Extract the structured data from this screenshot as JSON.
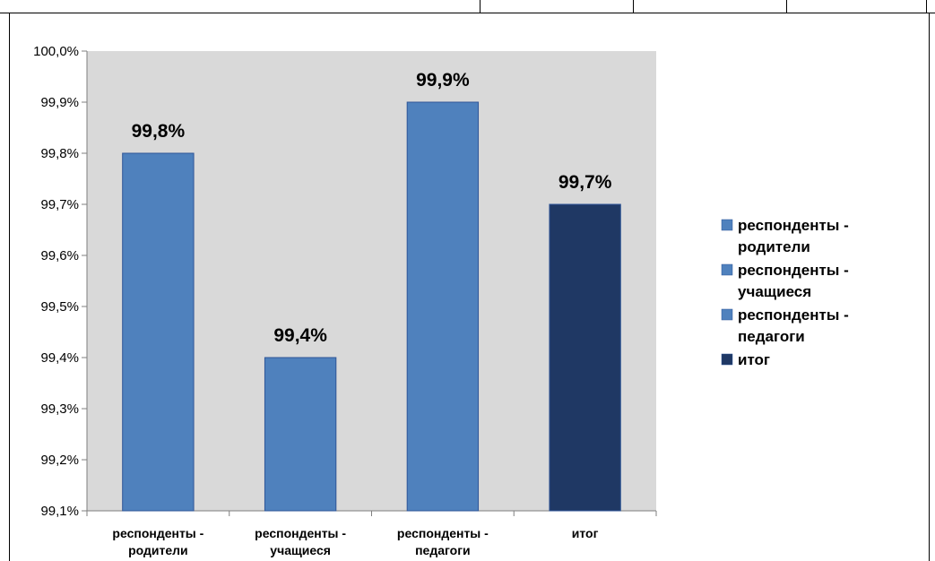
{
  "chart_data": {
    "type": "bar",
    "title": "",
    "xlabel": "",
    "ylabel": "",
    "categories": [
      [
        "респонденты -",
        "родители"
      ],
      [
        "респонденты -",
        "учащиеся"
      ],
      [
        "респонденты -",
        "педагоги"
      ],
      [
        "итог"
      ]
    ],
    "values": [
      99.8,
      99.4,
      99.9,
      99.7
    ],
    "data_labels": [
      "99,8%",
      "99,4%",
      "99,9%",
      "99,7%"
    ],
    "colors": [
      "#4f81bd",
      "#4f81bd",
      "#4f81bd",
      "#1f3864"
    ],
    "ylim": [
      99.1,
      100.0
    ],
    "yticks": [
      99.1,
      99.2,
      99.3,
      99.4,
      99.5,
      99.6,
      99.7,
      99.8,
      99.9,
      100.0
    ],
    "ytick_labels": [
      "99,1%",
      "99,2%",
      "99,3%",
      "99,4%",
      "99,5%",
      "99,6%",
      "99,7%",
      "99,8%",
      "99,9%",
      "100,0%"
    ],
    "plot_background": "#d9d9d9",
    "grid": false,
    "legend": {
      "position": "right",
      "entries": [
        {
          "lines": [
            "респонденты -",
            "родители"
          ],
          "color": "#4f81bd"
        },
        {
          "lines": [
            "респонденты -",
            "учащиеся"
          ],
          "color": "#4f81bd"
        },
        {
          "lines": [
            "респонденты -",
            "педагоги"
          ],
          "color": "#4f81bd"
        },
        {
          "lines": [
            "итог"
          ],
          "color": "#1f3864"
        }
      ]
    }
  }
}
